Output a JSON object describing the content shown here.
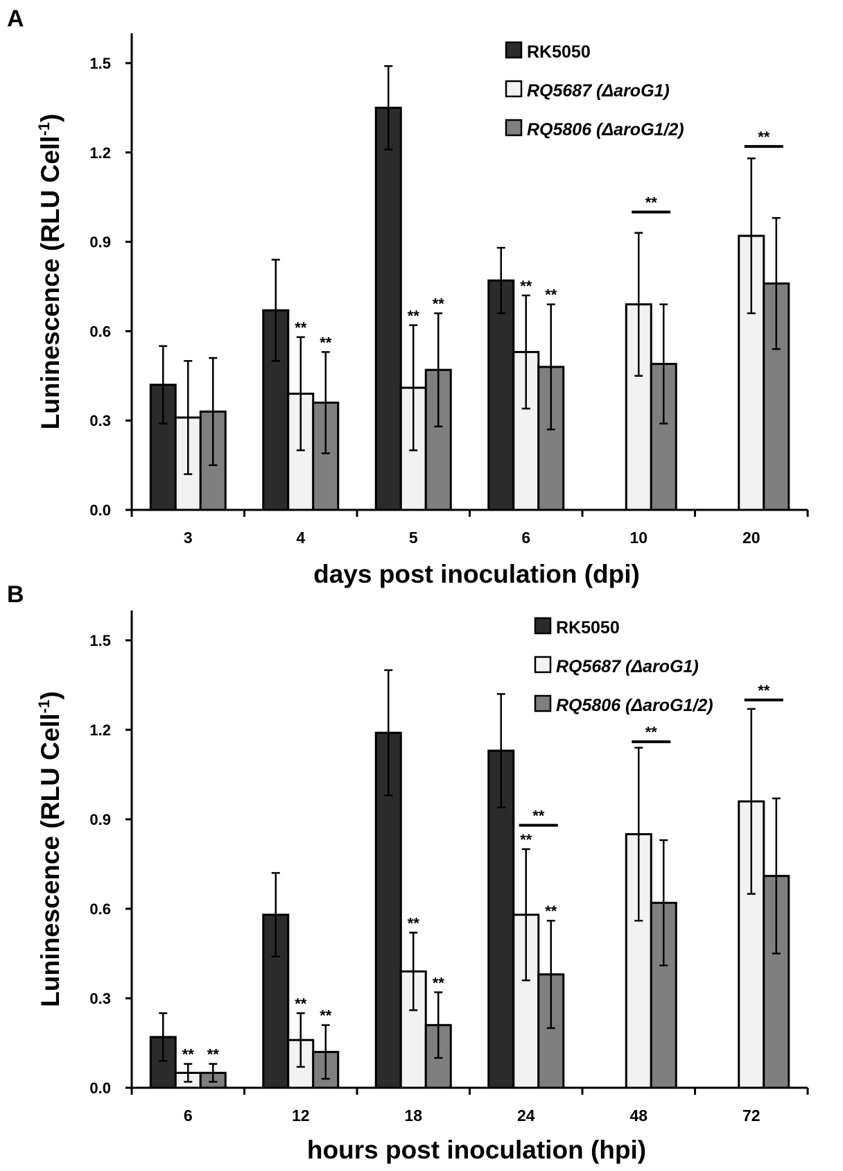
{
  "colors": {
    "series": [
      "#2b2b2b",
      "#f2f2f2",
      "#7f7f7f"
    ],
    "stroke": "#000000"
  },
  "chart_data": [
    {
      "panel_label": "A",
      "type": "bar",
      "categories": [
        "3",
        "4",
        "5",
        "6",
        "10",
        "20"
      ],
      "xlabel": "days post inoculation (dpi)",
      "ylabel": "Luninescence (RLU  Cell",
      "ylabel_sup": "-1",
      "ylabel_close": ")",
      "ylim": [
        0,
        1.6
      ],
      "yticks": [
        "0.0",
        "0.3",
        "0.6",
        "0.9",
        "1.2",
        "1.5"
      ],
      "legend_position": "top-right",
      "series": [
        {
          "name": "RK5050",
          "italic": false,
          "values": [
            0.42,
            0.67,
            1.35,
            0.77,
            null,
            null
          ],
          "errors": [
            0.13,
            0.17,
            0.14,
            0.11,
            null,
            null
          ],
          "sig": [
            "",
            "",
            "",
            "",
            "",
            ""
          ]
        },
        {
          "name": "RQ5687 (ΔaroG1)",
          "italic": true,
          "values": [
            0.31,
            0.39,
            0.41,
            0.53,
            0.69,
            0.92
          ],
          "errors": [
            0.19,
            0.19,
            0.21,
            0.19,
            0.24,
            0.26
          ],
          "sig": [
            "",
            "**",
            "**",
            "**",
            "",
            ""
          ]
        },
        {
          "name": "RQ5806 (ΔaroG1/2)",
          "italic": true,
          "values": [
            0.33,
            0.36,
            0.47,
            0.48,
            0.49,
            0.76
          ],
          "errors": [
            0.18,
            0.17,
            0.19,
            0.21,
            0.2,
            0.22
          ],
          "sig": [
            "",
            "**",
            "**",
            "**",
            "",
            ""
          ]
        }
      ],
      "brackets": [
        {
          "category": 4,
          "label": "**",
          "level": 1.0
        },
        {
          "category": 5,
          "label": "**",
          "level": 1.22
        }
      ]
    },
    {
      "panel_label": "B",
      "type": "bar",
      "categories": [
        "6",
        "12",
        "18",
        "24",
        "48",
        "72"
      ],
      "xlabel": "hours post inoculation (hpi)",
      "ylabel": "Luninescence (RLU  Cell",
      "ylabel_sup": "-1",
      "ylabel_close": ")",
      "ylim": [
        0,
        1.6
      ],
      "yticks": [
        "0.0",
        "0.3",
        "0.6",
        "0.9",
        "1.2",
        "1.5"
      ],
      "legend_position": "top-right",
      "series": [
        {
          "name": "RK5050",
          "italic": false,
          "values": [
            0.17,
            0.58,
            1.19,
            1.13,
            null,
            null
          ],
          "errors": [
            0.08,
            0.14,
            0.21,
            0.19,
            null,
            null
          ],
          "sig": [
            "",
            "",
            "",
            "",
            "",
            ""
          ]
        },
        {
          "name": "RQ5687 (ΔaroG1)",
          "italic": true,
          "values": [
            0.05,
            0.16,
            0.39,
            0.58,
            0.85,
            0.96
          ],
          "errors": [
            0.03,
            0.09,
            0.13,
            0.22,
            0.29,
            0.31
          ],
          "sig": [
            "**",
            "**",
            "**",
            "**",
            "",
            ""
          ]
        },
        {
          "name": "RQ5806 (ΔaroG1/2)",
          "italic": true,
          "values": [
            0.05,
            0.12,
            0.21,
            0.38,
            0.62,
            0.71
          ],
          "errors": [
            0.03,
            0.09,
            0.11,
            0.18,
            0.21,
            0.26
          ],
          "sig": [
            "**",
            "**",
            "**",
            "**",
            "",
            ""
          ]
        }
      ],
      "brackets": [
        {
          "category": 3,
          "label": "**",
          "level": 0.88
        },
        {
          "category": 4,
          "label": "**",
          "level": 1.16
        },
        {
          "category": 5,
          "label": "**",
          "level": 1.3
        }
      ]
    }
  ]
}
